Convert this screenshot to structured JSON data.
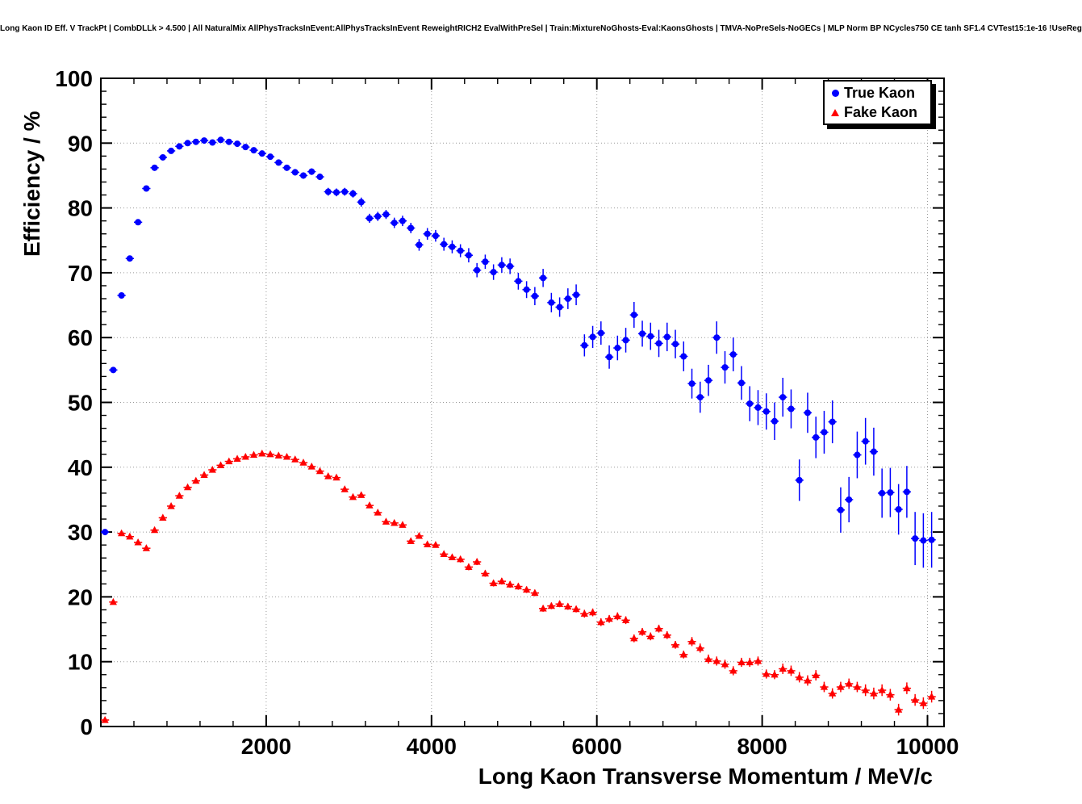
{
  "page": {
    "background": "#ffffff"
  },
  "chart_data": {
    "type": "scatter",
    "title": "Long Kaon ID Eff. V TrackPt | CombDLLk > 4.500 | All NaturalMix AllPhysTracksInEvent:AllPhysTracksInEvent ReweightRICH2 EvalWithPreSel | Train:MixtureNoGhosts-Eval:KaonsGhosts | TMVA-NoPreSels-NoGECs | MLP Norm BP NCycles750 CE tanh SF1.4 CVTest15:1e-16 !UseReg",
    "xlabel": "Long Kaon Transverse Momentum / MeV/c",
    "ylabel": "Efficiency / %",
    "xlim": [
      0,
      10200
    ],
    "ylim": [
      0,
      100
    ],
    "xticks": [
      2000,
      4000,
      6000,
      8000,
      10000
    ],
    "xtick_labels": [
      "2000",
      "4000",
      "6000",
      "8000",
      "10000"
    ],
    "yticks": [
      0,
      10,
      20,
      30,
      40,
      50,
      60,
      70,
      80,
      90,
      100
    ],
    "minor_x_step": 400,
    "minor_y_step": 2,
    "grid": true,
    "grid_color": "#999999",
    "frame_color": "#000000",
    "bin_half_width": 50,
    "legend": {
      "position": "top-right",
      "entries": [
        "True Kaon",
        "Fake Kaon"
      ]
    },
    "series": [
      {
        "name": "True Kaon",
        "marker": "circle",
        "color": "#0000ff",
        "points": [
          [
            50,
            30.0,
            0.4
          ],
          [
            150,
            55.0,
            0.4
          ],
          [
            250,
            66.5,
            0.4
          ],
          [
            350,
            72.2,
            0.4
          ],
          [
            450,
            77.8,
            0.4
          ],
          [
            550,
            83.0,
            0.4
          ],
          [
            650,
            86.2,
            0.3
          ],
          [
            750,
            87.8,
            0.3
          ],
          [
            850,
            88.8,
            0.3
          ],
          [
            950,
            89.5,
            0.3
          ],
          [
            1050,
            90.0,
            0.3
          ],
          [
            1150,
            90.2,
            0.3
          ],
          [
            1250,
            90.4,
            0.3
          ],
          [
            1350,
            90.1,
            0.3
          ],
          [
            1450,
            90.5,
            0.3
          ],
          [
            1550,
            90.2,
            0.3
          ],
          [
            1650,
            89.9,
            0.3
          ],
          [
            1750,
            89.4,
            0.3
          ],
          [
            1850,
            88.9,
            0.4
          ],
          [
            1950,
            88.4,
            0.4
          ],
          [
            2050,
            87.9,
            0.4
          ],
          [
            2150,
            87.0,
            0.4
          ],
          [
            2250,
            86.2,
            0.4
          ],
          [
            2350,
            85.5,
            0.5
          ],
          [
            2450,
            85.0,
            0.5
          ],
          [
            2550,
            85.6,
            0.5
          ],
          [
            2650,
            84.8,
            0.5
          ],
          [
            2750,
            82.5,
            0.6
          ],
          [
            2850,
            82.4,
            0.6
          ],
          [
            2950,
            82.5,
            0.6
          ],
          [
            3050,
            82.2,
            0.6
          ],
          [
            3150,
            80.9,
            0.7
          ],
          [
            3250,
            78.4,
            0.7
          ],
          [
            3350,
            78.7,
            0.7
          ],
          [
            3450,
            79.0,
            0.7
          ],
          [
            3550,
            77.7,
            0.8
          ],
          [
            3650,
            78.0,
            0.8
          ],
          [
            3750,
            76.9,
            0.8
          ],
          [
            3850,
            74.3,
            0.9
          ],
          [
            3950,
            76.0,
            0.9
          ],
          [
            4050,
            75.7,
            0.9
          ],
          [
            4150,
            74.4,
            1.0
          ],
          [
            4250,
            74.0,
            1.0
          ],
          [
            4350,
            73.4,
            1.0
          ],
          [
            4450,
            72.7,
            1.1
          ],
          [
            4550,
            70.4,
            1.1
          ],
          [
            4650,
            71.7,
            1.1
          ],
          [
            4750,
            70.1,
            1.2
          ],
          [
            4850,
            71.2,
            1.2
          ],
          [
            4950,
            71.0,
            1.2
          ],
          [
            5050,
            68.7,
            1.3
          ],
          [
            5150,
            67.4,
            1.3
          ],
          [
            5250,
            66.4,
            1.4
          ],
          [
            5350,
            69.2,
            1.4
          ],
          [
            5450,
            65.4,
            1.5
          ],
          [
            5550,
            64.7,
            1.5
          ],
          [
            5650,
            66.0,
            1.6
          ],
          [
            5750,
            66.6,
            1.6
          ],
          [
            5850,
            58.8,
            1.7
          ],
          [
            5950,
            60.1,
            1.7
          ],
          [
            6050,
            60.7,
            1.8
          ],
          [
            6150,
            57.0,
            1.8
          ],
          [
            6250,
            58.4,
            1.9
          ],
          [
            6350,
            59.6,
            1.9
          ],
          [
            6450,
            63.5,
            2.0
          ],
          [
            6550,
            60.6,
            2.0
          ],
          [
            6650,
            60.2,
            2.1
          ],
          [
            6750,
            59.1,
            2.1
          ],
          [
            6850,
            60.1,
            2.2
          ],
          [
            6950,
            59.0,
            2.2
          ],
          [
            7050,
            57.1,
            2.3
          ],
          [
            7150,
            52.9,
            2.3
          ],
          [
            7250,
            50.8,
            2.4
          ],
          [
            7350,
            53.4,
            2.4
          ],
          [
            7450,
            60.0,
            2.5
          ],
          [
            7550,
            55.4,
            2.5
          ],
          [
            7650,
            57.4,
            2.6
          ],
          [
            7750,
            53.0,
            2.6
          ],
          [
            7850,
            49.8,
            2.7
          ],
          [
            7950,
            49.2,
            2.7
          ],
          [
            8050,
            48.6,
            2.8
          ],
          [
            8150,
            47.1,
            2.9
          ],
          [
            8250,
            50.8,
            3.0
          ],
          [
            8350,
            49.0,
            3.0
          ],
          [
            8450,
            38.0,
            3.2
          ],
          [
            8550,
            48.4,
            3.1
          ],
          [
            8650,
            44.6,
            3.2
          ],
          [
            8750,
            45.4,
            3.3
          ],
          [
            8850,
            47.0,
            3.3
          ],
          [
            8950,
            33.4,
            3.5
          ],
          [
            9050,
            35.0,
            3.5
          ],
          [
            9150,
            41.9,
            3.6
          ],
          [
            9250,
            44.0,
            3.6
          ],
          [
            9350,
            42.4,
            3.7
          ],
          [
            9450,
            36.0,
            3.8
          ],
          [
            9550,
            36.1,
            3.8
          ],
          [
            9650,
            33.5,
            3.9
          ],
          [
            9750,
            36.2,
            4.0
          ],
          [
            9850,
            29.0,
            4.1
          ],
          [
            9950,
            28.7,
            4.2
          ],
          [
            10050,
            28.8,
            4.3
          ]
        ]
      },
      {
        "name": "Fake Kaon",
        "marker": "triangle",
        "color": "#ff0000",
        "points": [
          [
            50,
            1.0,
            0.1
          ],
          [
            150,
            19.2,
            0.2
          ],
          [
            250,
            29.8,
            0.3
          ],
          [
            350,
            29.3,
            0.3
          ],
          [
            450,
            28.4,
            0.3
          ],
          [
            550,
            27.5,
            0.3
          ],
          [
            650,
            30.3,
            0.3
          ],
          [
            750,
            32.2,
            0.3
          ],
          [
            850,
            34.0,
            0.3
          ],
          [
            950,
            35.6,
            0.3
          ],
          [
            1050,
            36.9,
            0.3
          ],
          [
            1150,
            37.9,
            0.3
          ],
          [
            1250,
            38.8,
            0.3
          ],
          [
            1350,
            39.6,
            0.3
          ],
          [
            1450,
            40.3,
            0.3
          ],
          [
            1550,
            40.9,
            0.3
          ],
          [
            1650,
            41.3,
            0.3
          ],
          [
            1750,
            41.6,
            0.3
          ],
          [
            1850,
            41.9,
            0.3
          ],
          [
            1950,
            42.1,
            0.3
          ],
          [
            2050,
            42.0,
            0.3
          ],
          [
            2150,
            41.8,
            0.3
          ],
          [
            2250,
            41.6,
            0.3
          ],
          [
            2350,
            41.2,
            0.3
          ],
          [
            2450,
            40.7,
            0.3
          ],
          [
            2550,
            40.1,
            0.3
          ],
          [
            2650,
            39.4,
            0.4
          ],
          [
            2750,
            38.6,
            0.4
          ],
          [
            2850,
            38.4,
            0.4
          ],
          [
            2950,
            36.6,
            0.4
          ],
          [
            3050,
            35.4,
            0.4
          ],
          [
            3150,
            35.7,
            0.4
          ],
          [
            3250,
            34.1,
            0.4
          ],
          [
            3350,
            33.0,
            0.4
          ],
          [
            3450,
            31.6,
            0.4
          ],
          [
            3550,
            31.4,
            0.4
          ],
          [
            3650,
            31.1,
            0.4
          ],
          [
            3750,
            28.6,
            0.4
          ],
          [
            3850,
            29.4,
            0.4
          ],
          [
            3950,
            28.1,
            0.4
          ],
          [
            4050,
            28.0,
            0.4
          ],
          [
            4150,
            26.6,
            0.4
          ],
          [
            4250,
            26.1,
            0.4
          ],
          [
            4350,
            25.8,
            0.5
          ],
          [
            4450,
            24.6,
            0.5
          ],
          [
            4550,
            25.4,
            0.5
          ],
          [
            4650,
            23.6,
            0.5
          ],
          [
            4750,
            22.1,
            0.5
          ],
          [
            4850,
            22.4,
            0.5
          ],
          [
            4950,
            21.9,
            0.5
          ],
          [
            5050,
            21.6,
            0.5
          ],
          [
            5150,
            21.1,
            0.5
          ],
          [
            5250,
            20.6,
            0.5
          ],
          [
            5350,
            18.2,
            0.5
          ],
          [
            5450,
            18.6,
            0.5
          ],
          [
            5550,
            18.9,
            0.5
          ],
          [
            5650,
            18.5,
            0.5
          ],
          [
            5750,
            18.1,
            0.5
          ],
          [
            5850,
            17.4,
            0.6
          ],
          [
            5950,
            17.6,
            0.6
          ],
          [
            6050,
            16.1,
            0.6
          ],
          [
            6150,
            16.6,
            0.6
          ],
          [
            6250,
            17.0,
            0.6
          ],
          [
            6350,
            16.4,
            0.6
          ],
          [
            6450,
            13.6,
            0.6
          ],
          [
            6550,
            14.6,
            0.6
          ],
          [
            6650,
            13.9,
            0.6
          ],
          [
            6750,
            15.1,
            0.6
          ],
          [
            6850,
            14.1,
            0.6
          ],
          [
            6950,
            12.6,
            0.6
          ],
          [
            7050,
            11.1,
            0.6
          ],
          [
            7150,
            13.1,
            0.7
          ],
          [
            7250,
            12.1,
            0.7
          ],
          [
            7350,
            10.4,
            0.7
          ],
          [
            7450,
            10.1,
            0.7
          ],
          [
            7550,
            9.6,
            0.7
          ],
          [
            7650,
            8.6,
            0.7
          ],
          [
            7750,
            9.9,
            0.7
          ],
          [
            7850,
            9.9,
            0.7
          ],
          [
            7950,
            10.1,
            0.7
          ],
          [
            8050,
            8.1,
            0.7
          ],
          [
            8150,
            8.0,
            0.7
          ],
          [
            8250,
            8.9,
            0.8
          ],
          [
            8350,
            8.6,
            0.8
          ],
          [
            8450,
            7.6,
            0.8
          ],
          [
            8550,
            7.1,
            0.8
          ],
          [
            8650,
            7.9,
            0.8
          ],
          [
            8750,
            6.1,
            0.8
          ],
          [
            8850,
            5.1,
            0.8
          ],
          [
            8950,
            6.1,
            0.8
          ],
          [
            9050,
            6.6,
            0.8
          ],
          [
            9150,
            6.1,
            0.8
          ],
          [
            9250,
            5.6,
            0.9
          ],
          [
            9350,
            5.1,
            0.9
          ],
          [
            9450,
            5.6,
            0.9
          ],
          [
            9550,
            4.9,
            0.9
          ],
          [
            9650,
            2.6,
            0.9
          ],
          [
            9750,
            5.9,
            0.9
          ],
          [
            9850,
            4.1,
            0.9
          ],
          [
            9950,
            3.6,
            0.9
          ],
          [
            10050,
            4.6,
            0.9
          ]
        ]
      }
    ]
  }
}
